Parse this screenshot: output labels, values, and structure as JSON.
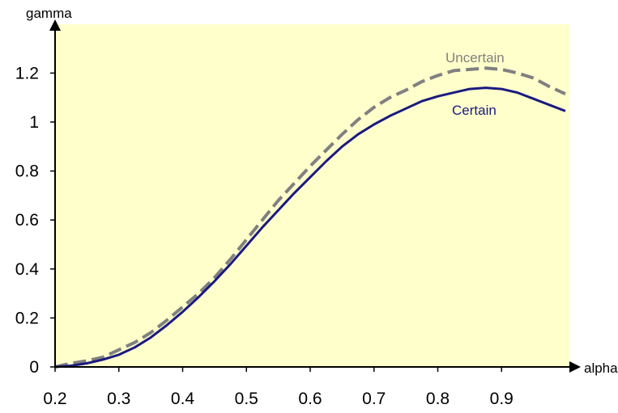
{
  "chart_data": {
    "type": "line",
    "title": "",
    "xlabel": "alpha",
    "ylabel": "gamma",
    "xlim": [
      0.2,
      1.0
    ],
    "ylim": [
      0,
      1.35
    ],
    "x_ticks": [
      "0.2",
      "0.3",
      "0.4",
      "0.5",
      "0.6",
      "0.7",
      "0.8",
      "0.9"
    ],
    "y_ticks": [
      "0",
      "0.2",
      "0.4",
      "0.6",
      "0.8",
      "1",
      "1.2"
    ],
    "grid": false,
    "plot_background": "#ffffcc",
    "series": [
      {
        "name": "Uncertain",
        "color": "#808080",
        "style": "dashed",
        "x": [
          0.2,
          0.225,
          0.25,
          0.275,
          0.3,
          0.325,
          0.35,
          0.375,
          0.4,
          0.425,
          0.45,
          0.475,
          0.5,
          0.525,
          0.55,
          0.575,
          0.6,
          0.625,
          0.65,
          0.675,
          0.7,
          0.725,
          0.75,
          0.775,
          0.8,
          0.825,
          0.85,
          0.875,
          0.9,
          0.925,
          0.95,
          0.975,
          1.0
        ],
        "values": [
          0.0,
          0.015,
          0.025,
          0.04,
          0.07,
          0.1,
          0.14,
          0.19,
          0.245,
          0.3,
          0.365,
          0.44,
          0.52,
          0.6,
          0.68,
          0.75,
          0.82,
          0.885,
          0.95,
          1.01,
          1.06,
          1.1,
          1.13,
          1.165,
          1.19,
          1.21,
          1.215,
          1.22,
          1.215,
          1.2,
          1.18,
          1.145,
          1.115
        ]
      },
      {
        "name": "Certain",
        "color": "#1a1a80",
        "style": "solid",
        "x": [
          0.2,
          0.225,
          0.25,
          0.275,
          0.3,
          0.325,
          0.35,
          0.375,
          0.4,
          0.425,
          0.45,
          0.475,
          0.5,
          0.525,
          0.55,
          0.575,
          0.6,
          0.625,
          0.65,
          0.675,
          0.7,
          0.725,
          0.75,
          0.775,
          0.8,
          0.825,
          0.85,
          0.875,
          0.9,
          0.925,
          0.95,
          0.975,
          1.0
        ],
        "values": [
          0.0,
          0.005,
          0.015,
          0.03,
          0.05,
          0.08,
          0.12,
          0.17,
          0.225,
          0.285,
          0.35,
          0.42,
          0.495,
          0.57,
          0.64,
          0.71,
          0.775,
          0.84,
          0.9,
          0.95,
          0.99,
          1.025,
          1.055,
          1.085,
          1.105,
          1.12,
          1.135,
          1.14,
          1.135,
          1.12,
          1.095,
          1.07,
          1.045
        ]
      }
    ]
  }
}
